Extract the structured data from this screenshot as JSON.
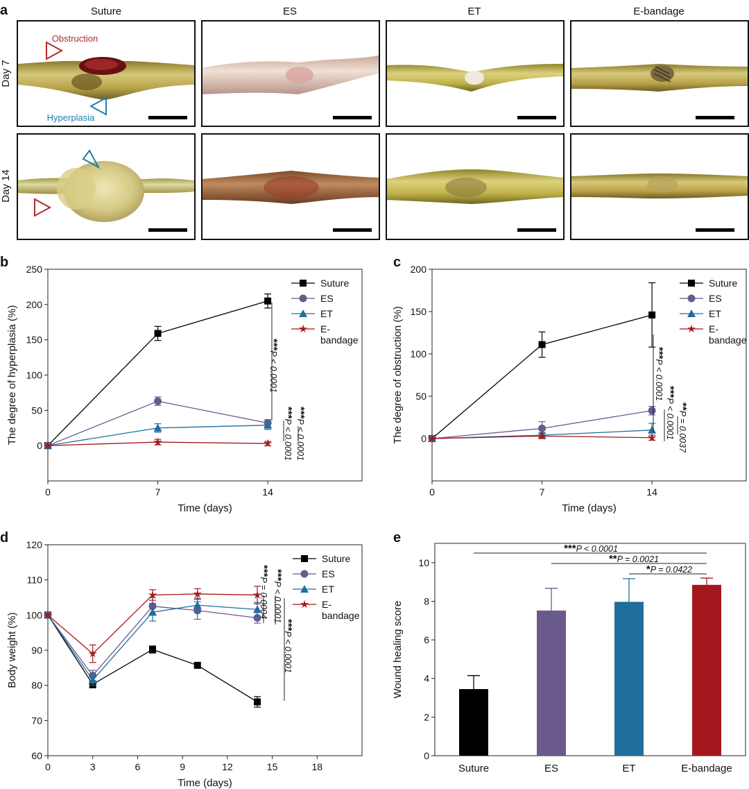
{
  "panel_a": {
    "letter": "a",
    "columns": [
      "Suture",
      "ES",
      "ET",
      "E-bandage"
    ],
    "rows": [
      "Day 7",
      "Day 14"
    ],
    "annotations": {
      "obstruction": "Obstruction",
      "hyperplasia": "Hyperplasia"
    },
    "colors": {
      "obstruction": "#b22a2a",
      "hyperplasia": "#1e7ea8"
    }
  },
  "colors": {
    "Suture": "#000000",
    "ES": "#6a5a8c",
    "ET": "#1f6e9c",
    "E-bandage": "#a3181c"
  },
  "chart_data": [
    {
      "panel": "b",
      "type": "line",
      "xlabel": "Time (days)",
      "ylabel": "The degree of hyperplasia (%)",
      "xlim": [
        0,
        20
      ],
      "ylim": [
        -50,
        250
      ],
      "xticks": [
        0,
        7,
        14
      ],
      "yticks": [
        0,
        50,
        100,
        150,
        200,
        250
      ],
      "legend_position": "top-right",
      "series": [
        {
          "name": "Suture",
          "marker": "square",
          "x": [
            0,
            7,
            14
          ],
          "y": [
            0,
            159,
            205
          ],
          "err": [
            0,
            10,
            10
          ]
        },
        {
          "name": "ES",
          "marker": "circle",
          "x": [
            0,
            7,
            14
          ],
          "y": [
            0,
            63,
            32
          ],
          "err": [
            0,
            6,
            5
          ]
        },
        {
          "name": "ET",
          "marker": "triangle",
          "x": [
            0,
            7,
            14
          ],
          "y": [
            0,
            25,
            29
          ],
          "err": [
            0,
            6,
            6
          ]
        },
        {
          "name": "E-bandage",
          "marker": "star",
          "x": [
            0,
            7,
            14
          ],
          "y": [
            0,
            5,
            3
          ],
          "err": [
            0,
            4,
            3
          ]
        }
      ],
      "legend_lines": [
        [
          "Suture"
        ],
        [
          "ES"
        ],
        [
          "ET"
        ],
        [
          "E-",
          "bandage"
        ]
      ],
      "annotations": [
        {
          "stars": "***",
          "text": "P < 0.0001"
        },
        {
          "stars": "***",
          "text": "P < 0.0001"
        },
        {
          "stars": "***",
          "text": "P < 0.0001"
        }
      ]
    },
    {
      "panel": "c",
      "type": "line",
      "xlabel": "Time (days)",
      "ylabel": "The degree of obstruction (%)",
      "xlim": [
        0,
        20
      ],
      "ylim": [
        -50,
        200
      ],
      "xticks": [
        0,
        7,
        14
      ],
      "yticks": [
        0,
        50,
        100,
        150,
        200
      ],
      "legend_position": "top-right",
      "series": [
        {
          "name": "Suture",
          "marker": "square",
          "x": [
            0,
            7,
            14
          ],
          "y": [
            0,
            111,
            146
          ],
          "err": [
            0,
            15,
            38
          ]
        },
        {
          "name": "ES",
          "marker": "circle",
          "x": [
            0,
            7,
            14
          ],
          "y": [
            0,
            12,
            33
          ],
          "err": [
            0,
            8,
            5
          ]
        },
        {
          "name": "ET",
          "marker": "triangle",
          "x": [
            0,
            7,
            14
          ],
          "y": [
            0,
            4,
            10
          ],
          "err": [
            0,
            3,
            8
          ]
        },
        {
          "name": "E-bandage",
          "marker": "star",
          "x": [
            0,
            7,
            14
          ],
          "y": [
            0,
            3,
            1
          ],
          "err": [
            0,
            3,
            3
          ]
        }
      ],
      "legend_lines": [
        [
          "Suture"
        ],
        [
          "ES"
        ],
        [
          "ET"
        ],
        [
          "E-",
          "bandage"
        ]
      ],
      "annotations": [
        {
          "stars": "***",
          "text": "P < 0.0001"
        },
        {
          "stars": "***",
          "text": "P < 0.0001"
        },
        {
          "stars": "**",
          "text": "P = 0.0037"
        }
      ]
    },
    {
      "panel": "d",
      "type": "line",
      "xlabel": "Time (days)",
      "ylabel": "Body weight (%)",
      "xlim": [
        0,
        21
      ],
      "ylim": [
        60,
        120
      ],
      "xticks": [
        0,
        3,
        6,
        9,
        12,
        15,
        18
      ],
      "yticks": [
        60,
        70,
        80,
        90,
        100,
        110,
        120
      ],
      "legend_position": "top-right",
      "series": [
        {
          "name": "Suture",
          "marker": "square",
          "x": [
            0,
            3,
            7,
            10,
            14
          ],
          "y": [
            100,
            80.3,
            90.2,
            85.7,
            75.3
          ],
          "err": [
            0,
            1.0,
            1.0,
            0.8,
            1.5
          ]
        },
        {
          "name": "ES",
          "marker": "circle",
          "x": [
            0,
            3,
            7,
            10,
            14
          ],
          "y": [
            100,
            82.8,
            102.5,
            101.3,
            99.2
          ],
          "err": [
            0,
            1.5,
            2.5,
            2.5,
            1.5
          ]
        },
        {
          "name": "ET",
          "marker": "triangle",
          "x": [
            0,
            3,
            7,
            10,
            14
          ],
          "y": [
            100,
            81.5,
            100.8,
            102.8,
            101.6
          ],
          "err": [
            0,
            1.5,
            2.5,
            2.0,
            2.0
          ]
        },
        {
          "name": "E-bandage",
          "marker": "star",
          "x": [
            0,
            3,
            7,
            10,
            14
          ],
          "y": [
            100,
            89.0,
            105.7,
            106.0,
            105.7
          ],
          "err": [
            0,
            2.5,
            1.5,
            1.5,
            2.5
          ]
        }
      ],
      "legend_lines": [
        [
          "Suture"
        ],
        [
          "ES"
        ],
        [
          "ET"
        ],
        [
          "E-",
          "bandage"
        ]
      ],
      "annotations": [
        {
          "stars": "***",
          "text": "P = 0.0004"
        },
        {
          "stars": "***",
          "text": "P < 0.0001"
        },
        {
          "stars": "***",
          "text": "P < 0.0001"
        }
      ]
    },
    {
      "panel": "e",
      "type": "bar",
      "xlabel": "",
      "ylabel": "Wound healing score",
      "ylim": [
        0,
        11
      ],
      "yticks": [
        0,
        2,
        4,
        6,
        8,
        10
      ],
      "categories": [
        "Suture",
        "ES",
        "ET",
        "E-bandage"
      ],
      "values": [
        3.45,
        7.52,
        7.97,
        8.85
      ],
      "err": [
        0.7,
        1.15,
        1.2,
        0.35
      ],
      "bar_colors": [
        "#000000",
        "#6a5a8c",
        "#1f6e9c",
        "#a3181c"
      ],
      "annotations": [
        {
          "stars": "***",
          "text": "P < 0.0001"
        },
        {
          "stars": "**",
          "text": "P = 0.0021"
        },
        {
          "stars": "*",
          "text": "P = 0.0422"
        }
      ]
    }
  ]
}
